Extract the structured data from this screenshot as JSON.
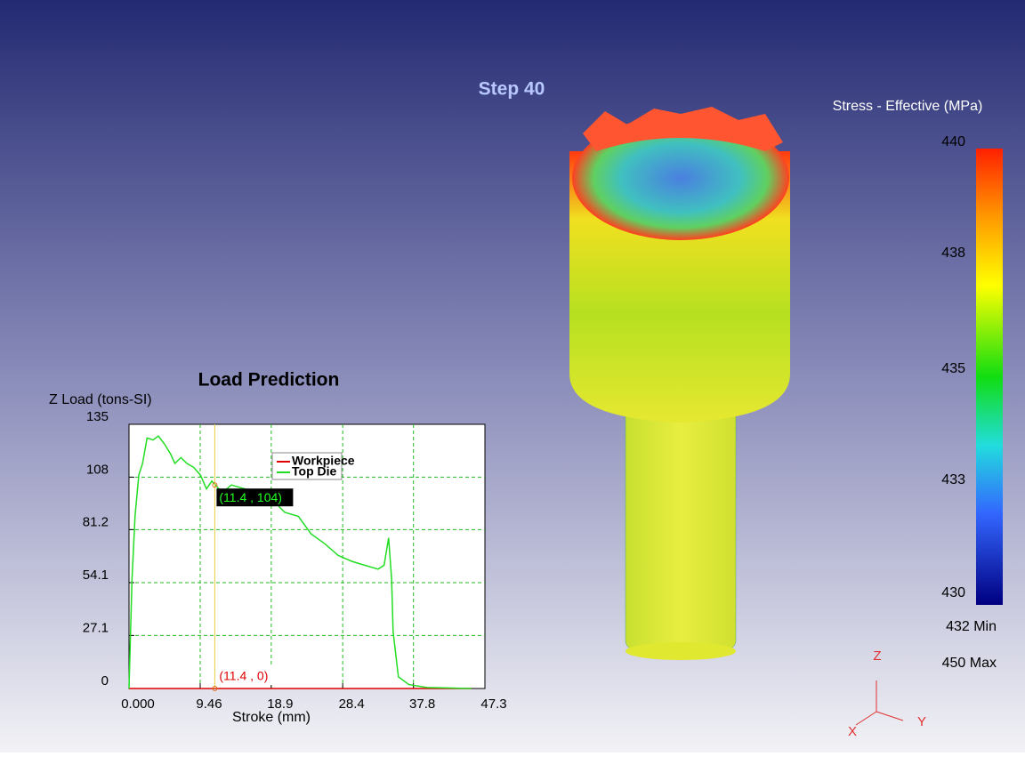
{
  "header": {
    "step": "Step  40"
  },
  "colorbar": {
    "title": "Stress - Effective (MPa)",
    "labels": [
      "440",
      "438",
      "435",
      "433",
      "430"
    ],
    "min_label": "432  Min",
    "max_label": "450  Max"
  },
  "triad": {
    "z": "Z",
    "x": "X",
    "y": "Y"
  },
  "chart_data": {
    "type": "line",
    "title": "Load Prediction",
    "x_label": "Stroke (mm)",
    "y_label": "Z Load (tons-SI)",
    "xlim": [
      0,
      47.3
    ],
    "ylim": [
      0,
      135
    ],
    "xticks": [
      {
        "value": 0,
        "label": "0.000"
      },
      9.46,
      18.9,
      28.4,
      37.8,
      47.3
    ],
    "yticks": [
      0,
      27.1,
      54.1,
      81.2,
      108,
      135
    ],
    "grid": true,
    "x": [
      0,
      0.4,
      0.8,
      1.3,
      1.8,
      2.4,
      3.2,
      3.9,
      4.7,
      5.5,
      6.1,
      6.9,
      7.7,
      8.6,
      9.5,
      10.3,
      11.0,
      11.5,
      12.4,
      13.6,
      15.4,
      17.1,
      18.9,
      20.7,
      22.5,
      24.2,
      26.0,
      27.8,
      29.6,
      31.3,
      33.1,
      33.9,
      34.5,
      34.9,
      35.1,
      35.8,
      37.2,
      39.6,
      45.5
    ],
    "series": [
      {
        "name": "Workpiece",
        "color": "#e00000",
        "values": [
          0,
          0,
          0,
          0,
          0,
          0,
          0,
          0,
          0,
          0,
          0,
          0,
          0,
          0,
          0,
          0,
          0,
          0,
          0,
          0,
          0,
          0,
          0,
          0,
          0,
          0,
          0,
          0,
          0,
          0,
          0,
          0,
          0,
          0,
          0,
          0,
          0,
          0,
          0
        ]
      },
      {
        "name": "Top Die",
        "color": "#22dd22",
        "values": [
          0,
          56,
          88,
          109,
          115,
          128,
          127,
          129,
          125,
          120,
          115,
          118,
          115,
          113,
          109,
          102,
          106,
          104,
          100,
          104,
          102,
          100,
          97,
          90,
          88,
          79,
          74,
          68,
          65,
          63,
          61,
          63,
          77,
          56,
          29,
          6,
          2,
          0.5,
          0
        ]
      }
    ],
    "annotations": [
      {
        "text": "(11.4 , 104)",
        "x": 11.4,
        "y": 104
      },
      {
        "text": "(11.4 , 0)",
        "x": 11.4,
        "y": 0
      }
    ]
  }
}
